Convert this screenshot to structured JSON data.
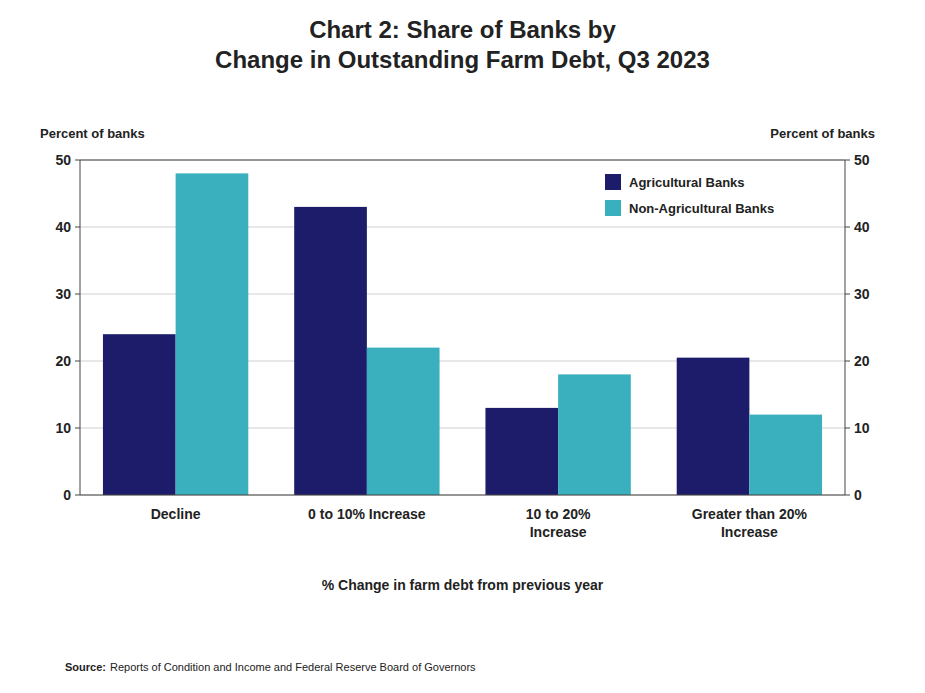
{
  "chart_data": {
    "type": "bar",
    "title": "Chart 2: Share of Banks by\nChange in Outstanding Farm Debt, Q3 2023",
    "categories": [
      "Decline",
      "0 to 10% Increase",
      "10 to 20%\nIncrease",
      "Greater than 20%\nIncrease"
    ],
    "series": [
      {
        "name": "Agricultural Banks",
        "color": "#1c1c6b",
        "values": [
          24,
          43,
          13,
          20.5
        ]
      },
      {
        "name": "Non-Agricultural Banks",
        "color": "#3aafbe",
        "values": [
          48,
          22,
          18,
          12
        ]
      }
    ],
    "xlabel": "% Change in farm debt from previous year",
    "ylabel": "Percent of banks",
    "y2label": "Percent of banks",
    "ylim": [
      0,
      50
    ],
    "yticks": [
      0,
      10,
      20,
      30,
      40,
      50
    ],
    "y2lim": [
      0,
      50
    ],
    "y2ticks": [
      0,
      10,
      20,
      30,
      40,
      50
    ],
    "grid": true,
    "legend": "upper right",
    "source_label": "Source:",
    "source": "Reports of Condition and Income and Federal Reserve Board of Governors"
  }
}
